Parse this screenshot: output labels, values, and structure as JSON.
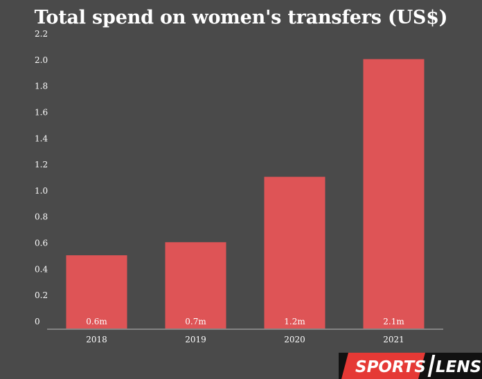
{
  "chart_data": {
    "type": "bar",
    "title": "Total spend on women's transfers (US$)",
    "xlabel": "",
    "ylabel": "",
    "categories": [
      "2018",
      "2019",
      "2020",
      "2021"
    ],
    "values": [
      0.56,
      0.66,
      1.16,
      2.06
    ],
    "data_labels": [
      "0.6m",
      "0.7m",
      "1.2m",
      "2.1m"
    ],
    "yticks": [
      "0",
      "0.2",
      "0.4",
      "0.6",
      "0.8",
      "1.0",
      "1.2",
      "1.4",
      "1.6",
      "1.8",
      "2.0",
      "2.2"
    ],
    "ylim": [
      0,
      2.2
    ],
    "grid": false,
    "bar_color": "#de5456",
    "background": "#4a4a4a"
  },
  "logo": {
    "part1": "SPORTS",
    "part2": "LENS",
    "colors": {
      "red": "#e53935",
      "black": "#111111",
      "white": "#ffffff"
    }
  }
}
